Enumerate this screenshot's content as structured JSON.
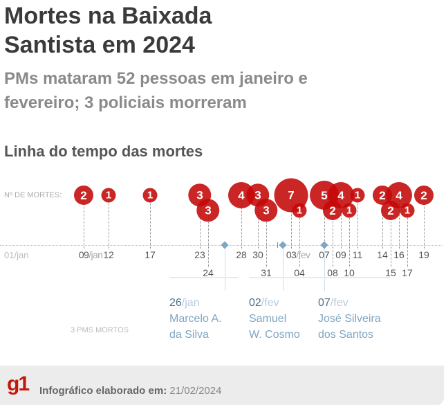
{
  "title": "Mortes na Baixada Santista em 2024",
  "subtitle": "PMs mataram 52 pessoas em janeiro e fevereiro; 3 policiais morreram",
  "section": "Linha do tempo das mortes",
  "y_label": "Nº DE MORTES:",
  "axis_start": "01/jan",
  "pm_label": "3 PMS MORTOS",
  "footer": {
    "logo": "g1",
    "label": "Infográfico elaborado em:",
    "date": "21/02/2024"
  },
  "colors": {
    "bubble": "#c40808",
    "pm": "#7fa6c2"
  },
  "chart_data": {
    "type": "scatter",
    "title": "Linha do tempo das mortes",
    "ylabel": "Nº DE MORTES",
    "points": [
      {
        "day": 9,
        "month": "jan",
        "label": "09",
        "suffix": "/jan",
        "deaths": 2,
        "row": 0
      },
      {
        "day": 12,
        "month": "jan",
        "label": "12",
        "deaths": 1,
        "row": 0
      },
      {
        "day": 17,
        "month": "jan",
        "label": "17",
        "deaths": 1,
        "row": 0
      },
      {
        "day": 23,
        "month": "jan",
        "label": "23",
        "deaths": 3,
        "row": 0
      },
      {
        "day": 24,
        "month": "jan",
        "label": "24",
        "deaths": 3,
        "row": 1
      },
      {
        "day": 28,
        "month": "jan",
        "label": "28",
        "deaths": 4,
        "row": 0
      },
      {
        "day": 30,
        "month": "jan",
        "label": "30",
        "deaths": 3,
        "row": 0
      },
      {
        "day": 31,
        "month": "jan",
        "label": "31",
        "deaths": 3,
        "row": 1
      },
      {
        "day": 3,
        "month": "fev",
        "label": "03",
        "suffix": "/fev",
        "deaths": 7,
        "row": 0
      },
      {
        "day": 4,
        "month": "fev",
        "label": "04",
        "deaths": 1,
        "row": 1
      },
      {
        "day": 7,
        "month": "fev",
        "label": "07",
        "deaths": 5,
        "row": 0
      },
      {
        "day": 8,
        "month": "fev",
        "label": "08",
        "deaths": 2,
        "row": 1
      },
      {
        "day": 9,
        "month": "fev",
        "label": "09",
        "deaths": 4,
        "row": 0
      },
      {
        "day": 10,
        "month": "fev",
        "label": "10",
        "deaths": 1,
        "row": 1
      },
      {
        "day": 11,
        "month": "fev",
        "label": "11",
        "deaths": 1,
        "row": 0
      },
      {
        "day": 14,
        "month": "fev",
        "label": "14",
        "deaths": 2,
        "row": 0
      },
      {
        "day": 15,
        "month": "fev",
        "label": "15",
        "deaths": 2,
        "row": 1
      },
      {
        "day": 16,
        "month": "fev",
        "label": "16",
        "deaths": 4,
        "row": 0
      },
      {
        "day": 17,
        "month": "fev",
        "label": "17",
        "deaths": 1,
        "row": 1
      },
      {
        "day": 19,
        "month": "fev",
        "label": "19",
        "deaths": 2,
        "row": 0
      }
    ],
    "pm_deaths": [
      {
        "day": 26,
        "month": "jan",
        "date": "26",
        "suffix": "/jan",
        "name1": "Marcelo A.",
        "name2": "da Silva"
      },
      {
        "day": 2,
        "month": "fev",
        "date": "02",
        "suffix": "/fev",
        "name1": "Samuel",
        "name2": "W. Cosmo"
      },
      {
        "day": 7,
        "month": "fev",
        "date": "07",
        "suffix": "/fev",
        "name1": "José Silveira",
        "name2": "dos Santos"
      }
    ]
  }
}
